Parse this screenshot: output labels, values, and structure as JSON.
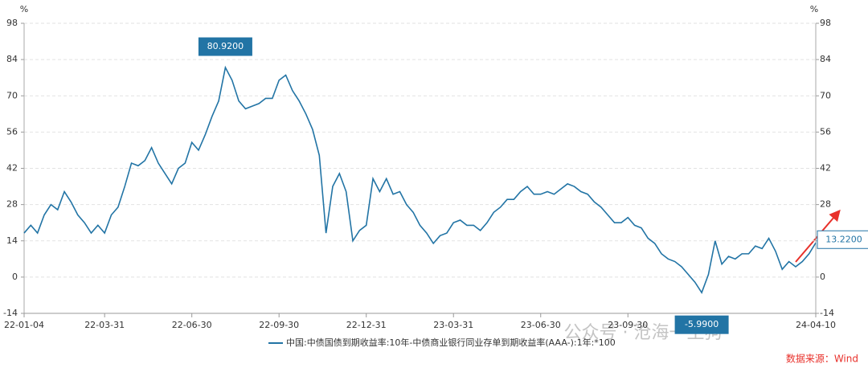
{
  "chart_data": {
    "type": "line",
    "y_unit": "%",
    "y2_unit": "%",
    "categories": [
      "22-01-04",
      null,
      null,
      null,
      null,
      null,
      null,
      null,
      null,
      null,
      null,
      null,
      "22-03-31",
      null,
      null,
      null,
      null,
      null,
      null,
      null,
      null,
      null,
      null,
      null,
      null,
      "22-06-30",
      null,
      null,
      null,
      null,
      null,
      null,
      null,
      null,
      null,
      null,
      null,
      null,
      "22-09-30",
      null,
      null,
      null,
      null,
      null,
      null,
      null,
      null,
      null,
      null,
      null,
      null,
      "22-12-31",
      null,
      null,
      null,
      null,
      null,
      null,
      null,
      null,
      null,
      null,
      null,
      null,
      "23-03-31",
      null,
      null,
      null,
      null,
      null,
      null,
      null,
      null,
      null,
      null,
      null,
      null,
      "23-06-30",
      null,
      null,
      null,
      null,
      null,
      null,
      null,
      null,
      null,
      null,
      null,
      null,
      "23-09-30",
      null,
      null,
      null,
      null,
      null,
      null,
      null,
      null,
      null,
      null,
      null,
      null,
      null,
      null,
      null,
      null,
      null,
      null,
      null,
      null,
      null,
      null,
      null,
      null,
      null,
      null,
      null,
      "24-04-10"
    ],
    "series": [
      {
        "name": "中国:中债国债到期收益率:10年-中债商业银行同业存单到期收益率(AAA-):1年:*100",
        "color": "#2274a5",
        "values": [
          17,
          20,
          17,
          24,
          28,
          26,
          33,
          29,
          24,
          21,
          17,
          20,
          17,
          24,
          27,
          35,
          44,
          43,
          45,
          50,
          44,
          40,
          36,
          42,
          44,
          52,
          49,
          55,
          62,
          68,
          80.92,
          76,
          68,
          65,
          66,
          67,
          69,
          69,
          76,
          78,
          72,
          68,
          63,
          57,
          47,
          17,
          35,
          40,
          33,
          14,
          18,
          20,
          38,
          33,
          38,
          32,
          33,
          28,
          25,
          20,
          17,
          13,
          16,
          17,
          21,
          22,
          20,
          20,
          18,
          21,
          25,
          27,
          30,
          30,
          33,
          35,
          32,
          32,
          33,
          32,
          34,
          36,
          35,
          33,
          32,
          29,
          27,
          24,
          21,
          21,
          23,
          20,
          19,
          15,
          13,
          9,
          7,
          6,
          4,
          1,
          -2,
          -5.99,
          1,
          14,
          5,
          8,
          7,
          9,
          9,
          12,
          11,
          15,
          10,
          3,
          6,
          4,
          6,
          9,
          13.22
        ],
        "value_labels": [
          null,
          null,
          null,
          null,
          null,
          null,
          null,
          null,
          null,
          null,
          null,
          null,
          null,
          null,
          null,
          null,
          null,
          null,
          null,
          null,
          null,
          null,
          null,
          null,
          null,
          null,
          null,
          null,
          null,
          null,
          "80.9200",
          null,
          null,
          null,
          null,
          null,
          null,
          null,
          null,
          null,
          null,
          null,
          null,
          null,
          null,
          null,
          null,
          null,
          null,
          null,
          null,
          null,
          null,
          null,
          null,
          null,
          null,
          null,
          null,
          null,
          null,
          null,
          null,
          null,
          null,
          null,
          null,
          null,
          null,
          null,
          null,
          null,
          null,
          null,
          null,
          null,
          null,
          null,
          null,
          null,
          null,
          null,
          null,
          null,
          null,
          null,
          null,
          null,
          null,
          null,
          null,
          null,
          null,
          null,
          null,
          null,
          null,
          null,
          null,
          null,
          null,
          "-5.9900",
          null,
          null,
          null,
          null,
          null,
          null,
          null,
          null,
          null,
          null,
          null,
          null,
          null,
          null,
          null,
          null,
          "13.2200"
        ]
      }
    ],
    "ylim": [
      -14,
      98
    ],
    "yticks": [
      -14,
      0,
      14,
      28,
      42,
      56,
      70,
      84,
      98
    ],
    "y2lim": [
      -14,
      98
    ],
    "y2ticks": [
      -14,
      0,
      14,
      28,
      42,
      56,
      70,
      84,
      98
    ],
    "grid": true,
    "source": "数据来源：Wind",
    "watermark": "公众号 · 沧海一土狗"
  }
}
